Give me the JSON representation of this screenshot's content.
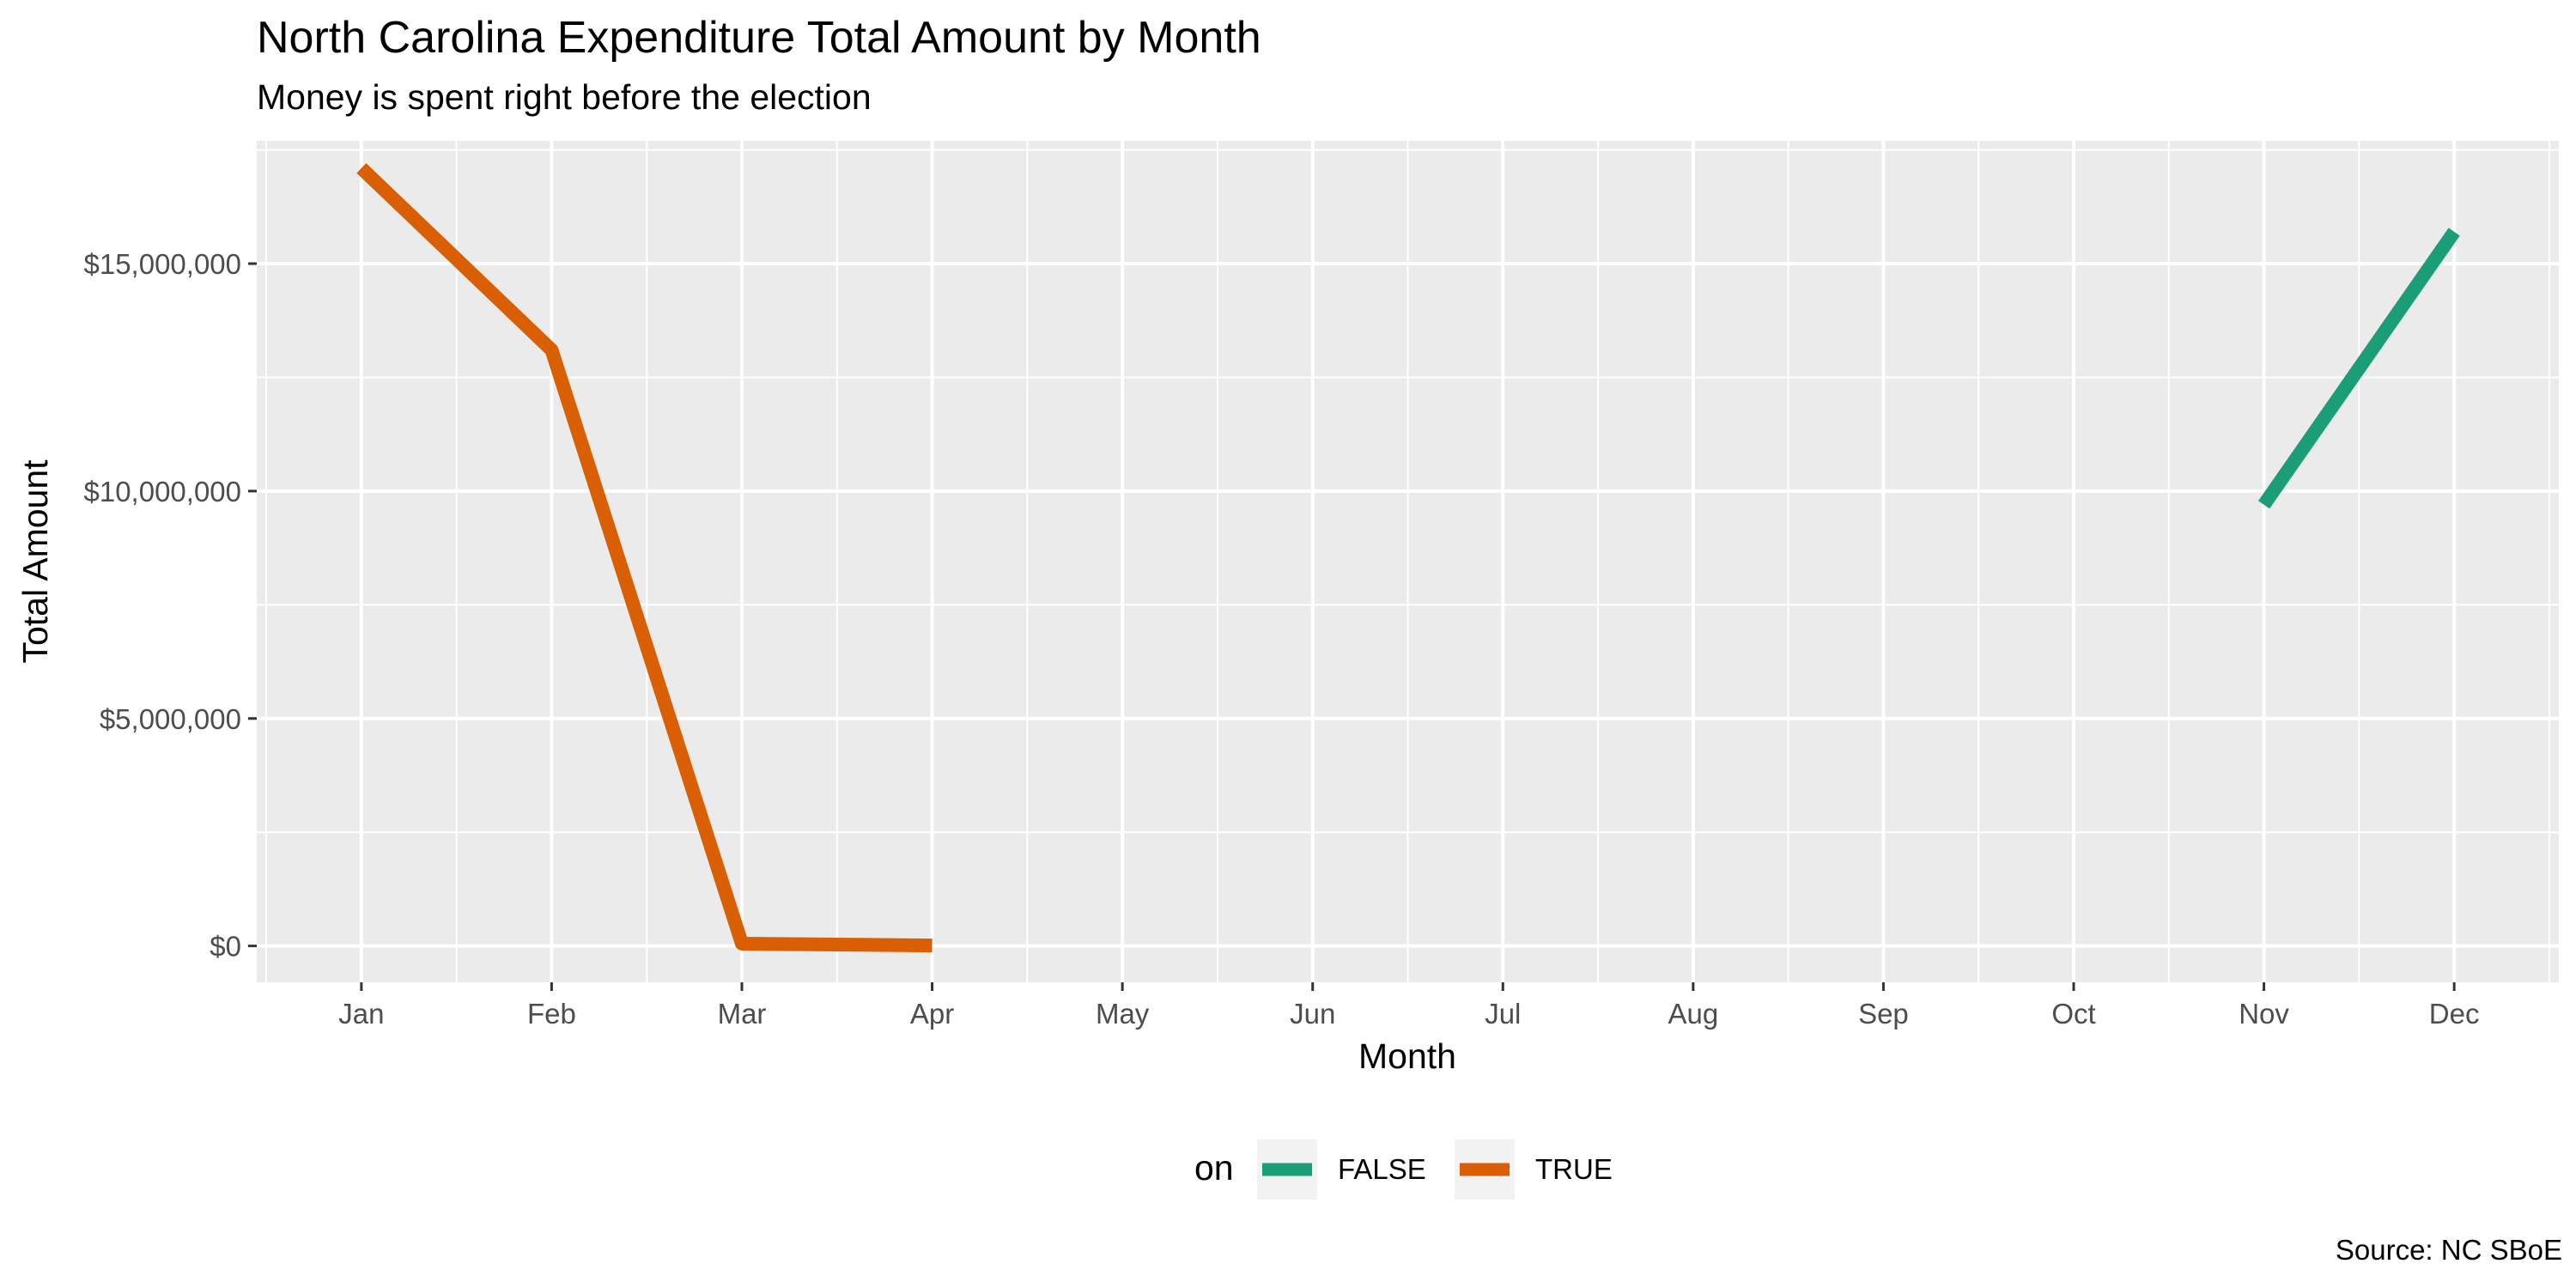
{
  "chart_data": {
    "type": "line",
    "title": "North Carolina Expenditure Total Amount by Month",
    "subtitle": "Money is spent right before the election",
    "caption": "Source: NC SBoE",
    "xlabel": "Month",
    "ylabel": "Total Amount",
    "categories": [
      "Jan",
      "Feb",
      "Mar",
      "Apr",
      "May",
      "Jun",
      "Jul",
      "Aug",
      "Sep",
      "Oct",
      "Nov",
      "Dec"
    ],
    "ylim": [
      -800000,
      17700000
    ],
    "y_ticks": [
      0,
      5000000,
      10000000,
      15000000
    ],
    "y_tick_labels": [
      "$0",
      "$5,000,000",
      "$10,000,000",
      "$15,000,000"
    ],
    "grid": true,
    "legend": {
      "title": "on",
      "position": "bottom"
    },
    "series": [
      {
        "name": "FALSE",
        "color": "#1b9e77",
        "x": [
          "Nov",
          "Dec"
        ],
        "values": [
          9700000,
          15700000
        ]
      },
      {
        "name": "TRUE",
        "color": "#d95f02",
        "x": [
          "Jan",
          "Feb",
          "Mar",
          "Apr"
        ],
        "values": [
          17100000,
          13100000,
          50000,
          10000
        ]
      }
    ]
  }
}
